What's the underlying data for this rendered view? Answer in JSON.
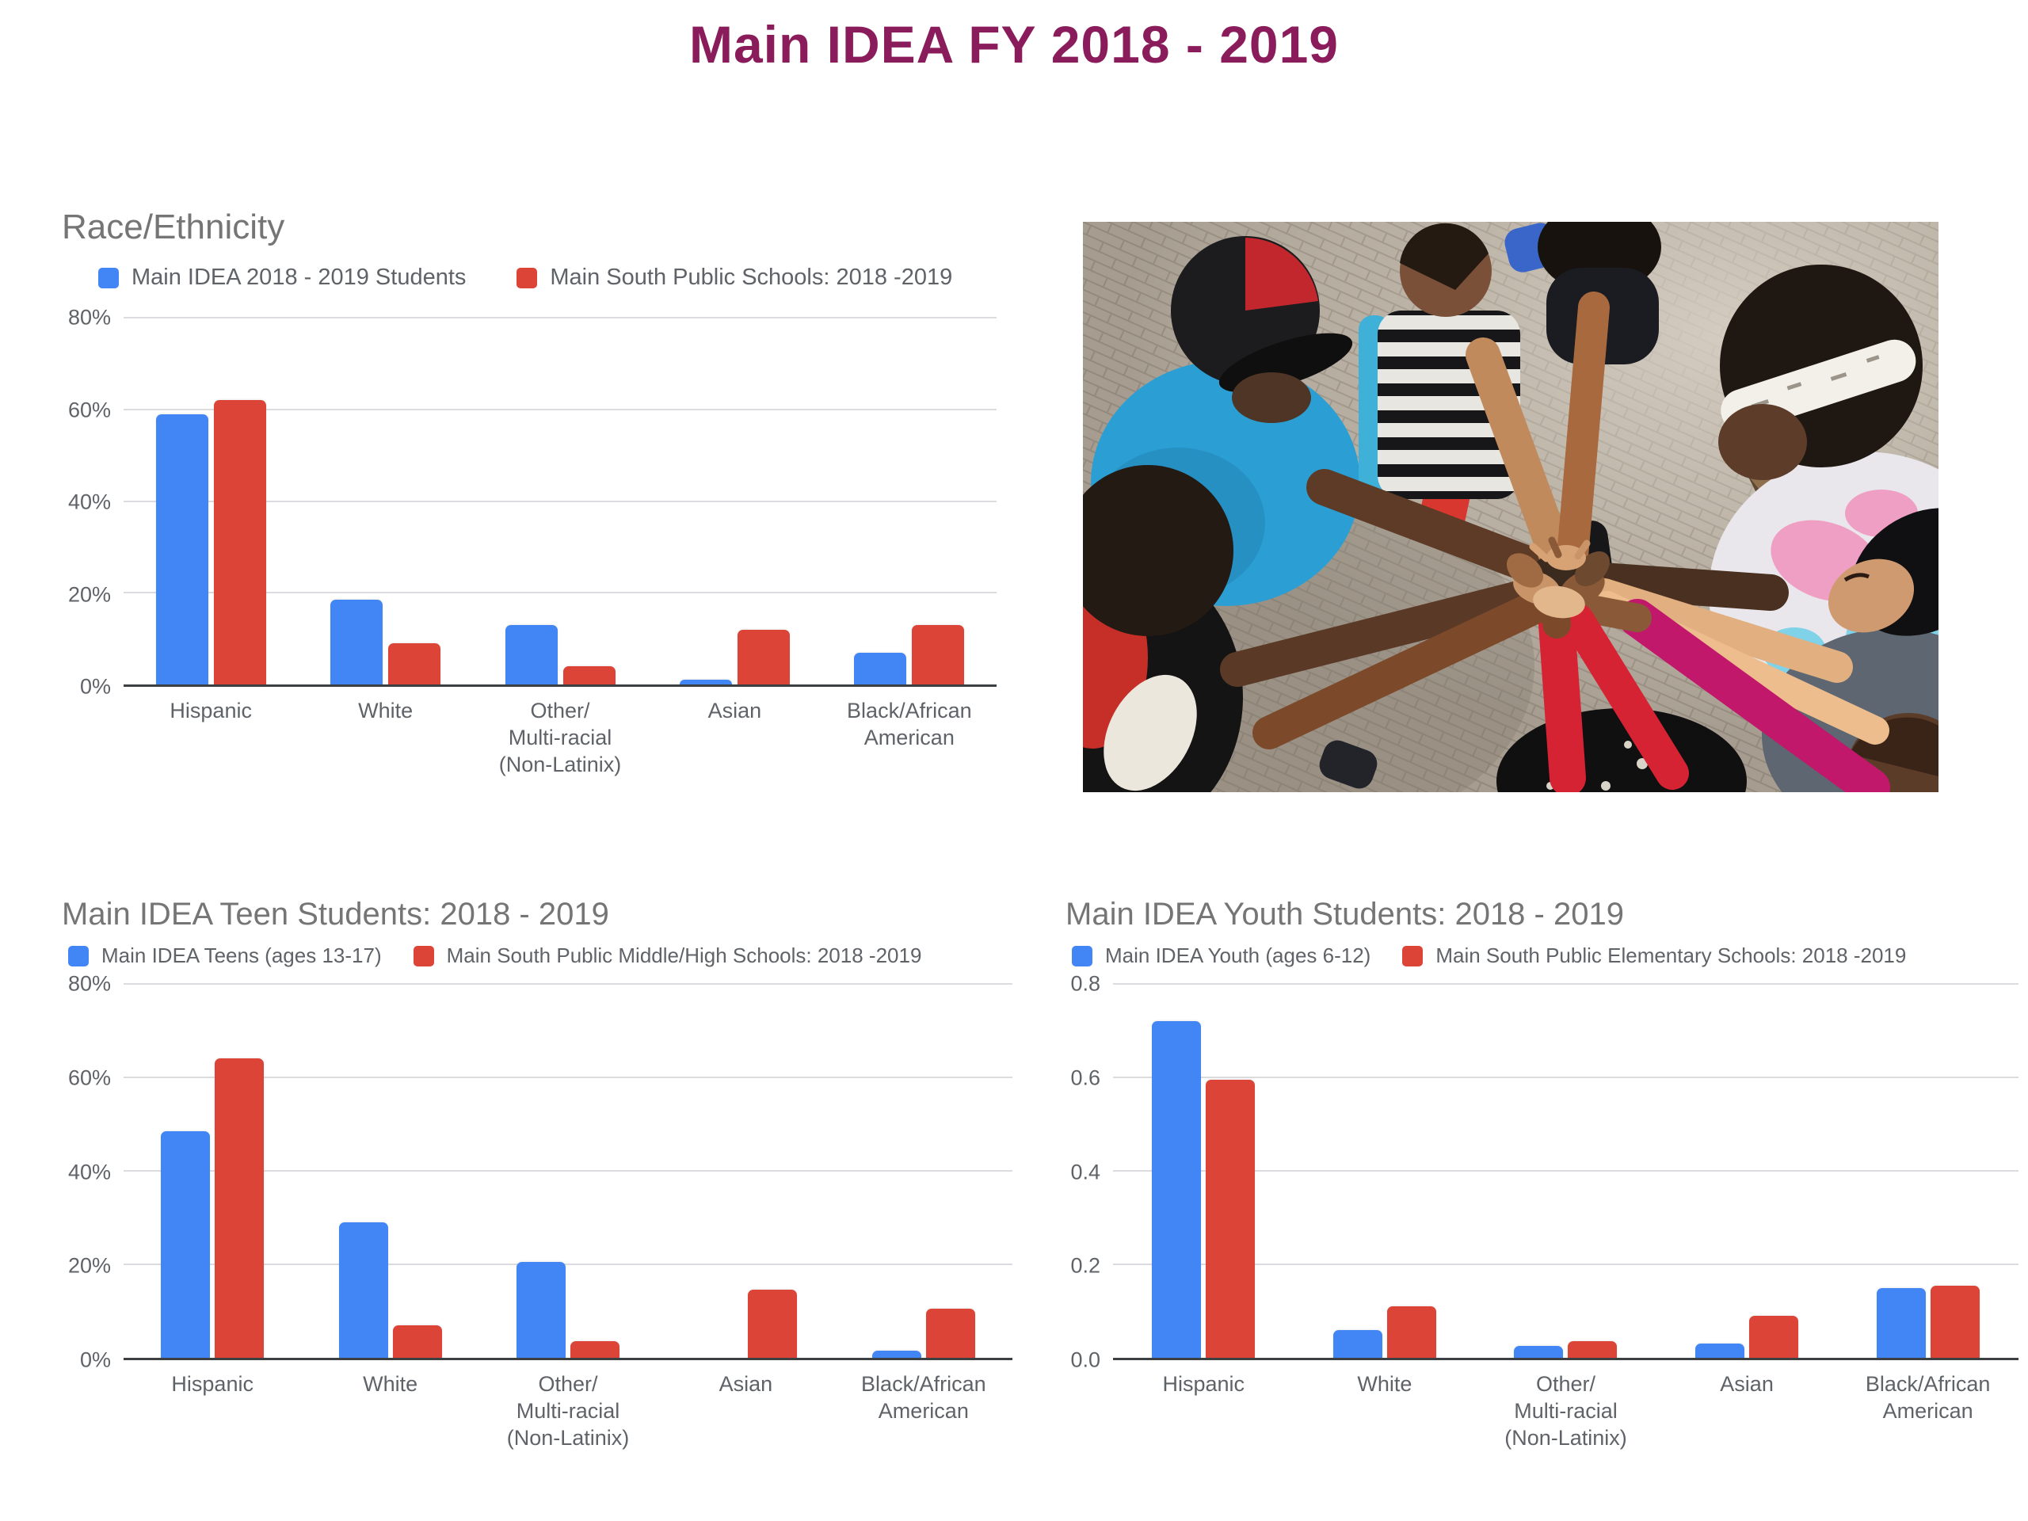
{
  "page": {
    "title": "Main IDEA FY 2018 - 2019"
  },
  "theme": {
    "title_color": "#8B1C5C",
    "series_blue": "#4285F4",
    "series_red": "#DB4437",
    "chart_title_color": "#757575",
    "axis_text_color": "#5F6368"
  },
  "chart_data": [
    {
      "type": "bar",
      "title": "Race/Ethnicity",
      "categories": [
        "Hispanic",
        "White",
        "Other/\nMulti-racial\n(Non-Latinix)",
        "Asian",
        "Black/African\nAmerican"
      ],
      "series": [
        {
          "name": "Main IDEA 2018 - 2019 Students",
          "color": "#4285F4",
          "values": [
            59,
            18.5,
            13,
            1,
            7
          ]
        },
        {
          "name": "Main South Public Schools: 2018 -2019",
          "color": "#DB4437",
          "values": [
            62,
            9,
            4,
            12,
            13
          ]
        }
      ],
      "ylim": [
        0,
        80
      ],
      "yticks": [
        "80%",
        "60%",
        "40%",
        "20%",
        "0%"
      ],
      "grid": true,
      "legend_position": "top"
    },
    {
      "type": "bar",
      "title": "Main IDEA Teen Students: 2018 - 2019",
      "categories": [
        "Hispanic",
        "White",
        "Other/\nMulti-racial\n(Non-Latinix)",
        "Asian",
        "Black/African\nAmerican"
      ],
      "series": [
        {
          "name": "Main IDEA Teens (ages 13-17)",
          "color": "#4285F4",
          "values": [
            48.5,
            29,
            20.5,
            0,
            1.5
          ]
        },
        {
          "name": "Main South Public Middle/High Schools: 2018 -2019",
          "color": "#DB4437",
          "values": [
            64,
            7,
            3.5,
            14.5,
            10.5
          ]
        }
      ],
      "ylim": [
        0,
        80
      ],
      "yticks": [
        "80%",
        "60%",
        "40%",
        "20%",
        "0%"
      ],
      "grid": true,
      "legend_position": "top"
    },
    {
      "type": "bar",
      "title": "Main IDEA Youth Students: 2018 - 2019",
      "categories": [
        "Hispanic",
        "White",
        "Other/\nMulti-racial\n(Non-Latinix)",
        "Asian",
        "Black/African\nAmerican"
      ],
      "series": [
        {
          "name": "Main IDEA Youth (ages 6-12)",
          "color": "#4285F4",
          "values": [
            0.72,
            0.06,
            0.025,
            0.03,
            0.15
          ]
        },
        {
          "name": "Main South Public Elementary Schools: 2018 -2019",
          "color": "#DB4437",
          "values": [
            0.595,
            0.11,
            0.035,
            0.09,
            0.155
          ]
        }
      ],
      "ylim": [
        0,
        0.8
      ],
      "yticks": [
        "0.8",
        "0.6",
        "0.4",
        "0.2",
        "0.0"
      ],
      "grid": true,
      "legend_position": "top"
    }
  ]
}
